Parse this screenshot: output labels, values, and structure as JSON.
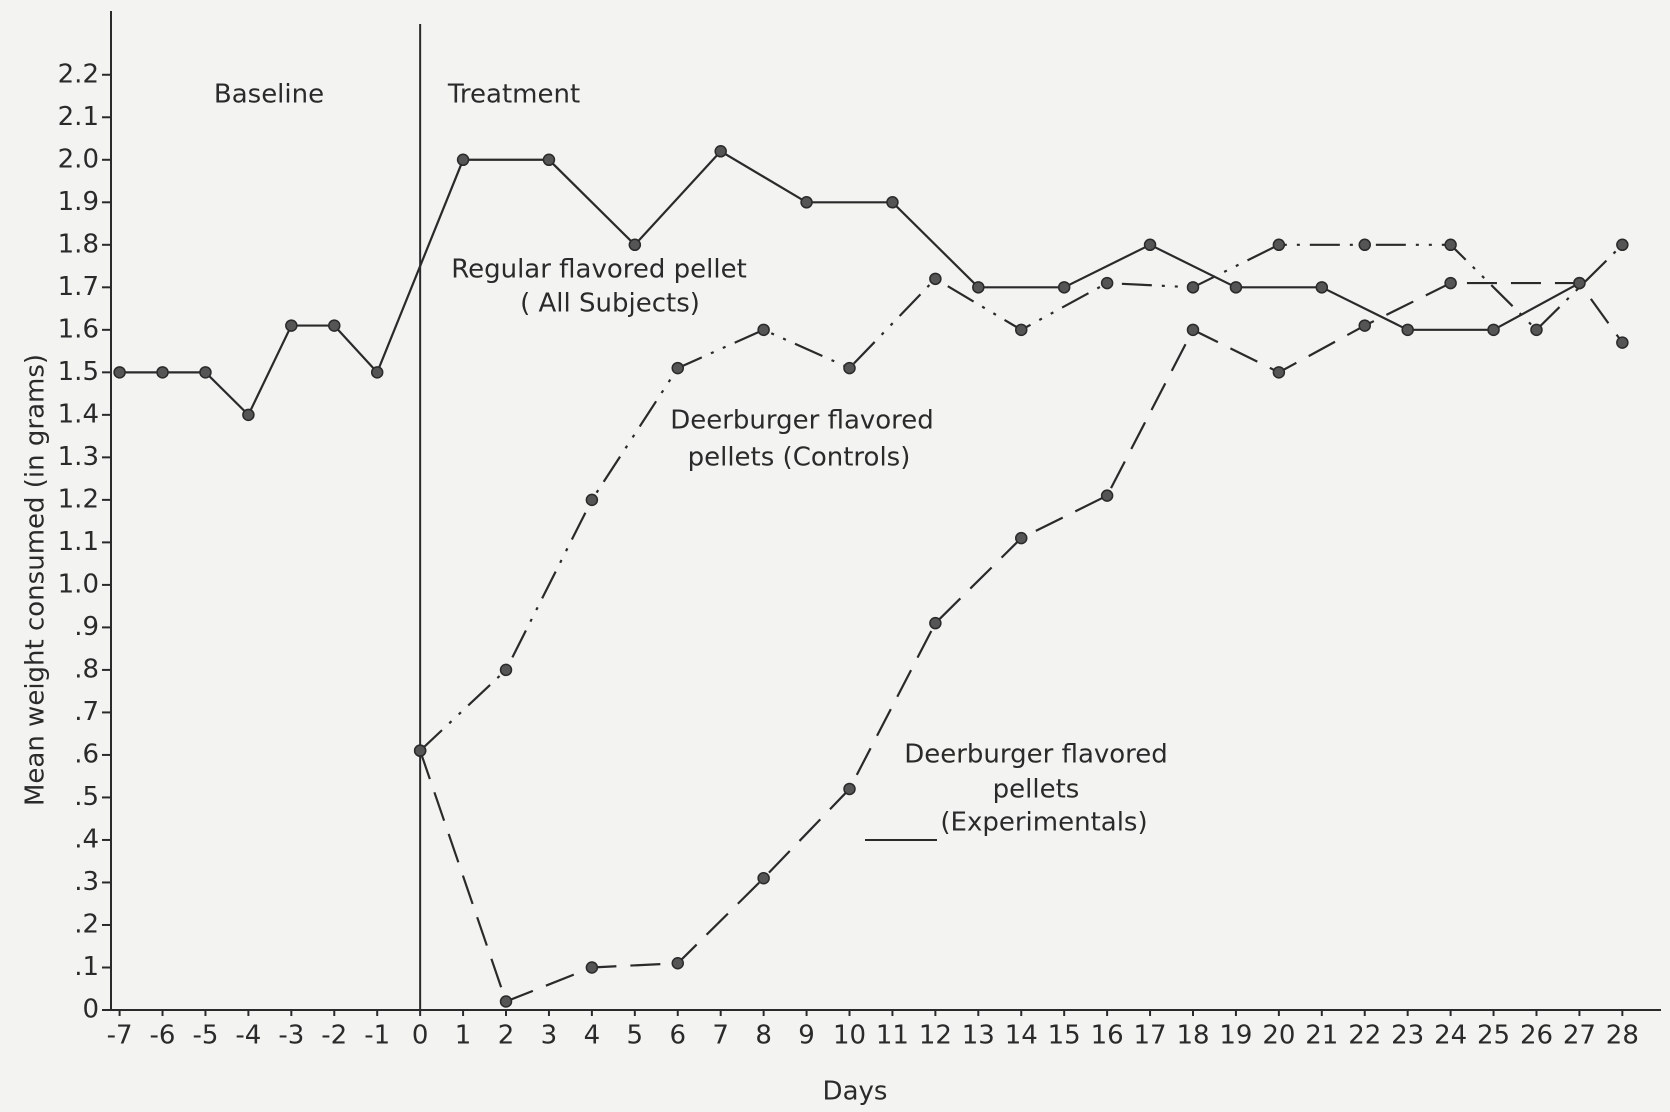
{
  "chart_data": {
    "type": "line",
    "x_label": "Days",
    "y_label": "Mean weight consumed (in grams)",
    "xlim": [
      -7.2,
      28.9
    ],
    "ylim": [
      0,
      2.35
    ],
    "xticks": [
      -7,
      -6,
      -5,
      -4,
      -3,
      -2,
      -1,
      0,
      1,
      2,
      3,
      4,
      5,
      6,
      7,
      8,
      9,
      10,
      11,
      12,
      13,
      14,
      15,
      16,
      17,
      18,
      19,
      20,
      21,
      22,
      23,
      24,
      25,
      26,
      27,
      28
    ],
    "yticks": [
      0,
      {
        "value": 0.1,
        "label": ".1"
      },
      {
        "value": 0.2,
        "label": ".2"
      },
      {
        "value": 0.3,
        "label": ".3"
      },
      {
        "value": 0.4,
        "label": ".4"
      },
      {
        "value": 0.5,
        "label": ".5"
      },
      {
        "value": 0.6,
        "label": ".6"
      },
      {
        "value": 0.7,
        "label": ".7"
      },
      {
        "value": 0.8,
        "label": ".8"
      },
      {
        "value": 0.9,
        "label": ".9"
      },
      {
        "value": 1.0,
        "label": "1.0"
      },
      1.1,
      1.2,
      1.3,
      1.4,
      1.5,
      1.6,
      1.7,
      1.8,
      1.9,
      {
        "value": 2.0,
        "label": "2.0"
      },
      2.1,
      2.2
    ],
    "phase_divider": 0,
    "series": [
      {
        "color": "#2a2a2a",
        "linestyle": "solid",
        "x": [
          -7,
          -6,
          -5,
          -4,
          -3,
          -2,
          -1,
          1,
          3,
          5,
          7,
          9,
          11,
          13,
          15,
          17,
          19,
          21,
          23,
          25,
          27
        ],
        "values": [
          1.5,
          1.5,
          1.5,
          1.4,
          1.61,
          1.61,
          1.5,
          2.0,
          2.0,
          1.8,
          2.02,
          1.9,
          1.9,
          1.7,
          1.7,
          1.8,
          1.7,
          1.7,
          1.6,
          1.6,
          1.71
        ]
      },
      {
        "color": "#2a2a2a",
        "linestyle": "dashdotdot",
        "x": [
          0,
          2,
          4,
          6,
          8,
          10,
          12,
          14,
          16,
          18,
          20,
          22,
          24,
          26,
          28
        ],
        "values": [
          0.61,
          0.8,
          1.2,
          1.51,
          1.6,
          1.51,
          1.72,
          1.6,
          1.71,
          1.7,
          1.8,
          1.8,
          1.8,
          1.6,
          1.8
        ]
      },
      {
        "color": "#2a2a2a",
        "linestyle": "dashed",
        "x": [
          0,
          2,
          4,
          6,
          8,
          10,
          12,
          14,
          16,
          18,
          20,
          22,
          24,
          27,
          28
        ],
        "values": [
          0.61,
          0.02,
          0.1,
          0.11,
          0.31,
          0.52,
          0.91,
          1.11,
          1.21,
          1.6,
          1.5,
          1.61,
          1.71,
          1.71,
          1.57
        ]
      }
    ],
    "annotations": [
      {
        "lines": [
          "Baseline"
        ]
      },
      {
        "lines": [
          "Treatment"
        ]
      },
      {
        "lines": [
          "Regular flavored pellet",
          "( All Subjects)"
        ]
      },
      {
        "lines": [
          "Deerburger flavored",
          "pellets (Controls)"
        ]
      },
      {
        "lines": [
          "Deerburger flavored",
          "pellets",
          "(Experimentals)"
        ]
      }
    ]
  }
}
